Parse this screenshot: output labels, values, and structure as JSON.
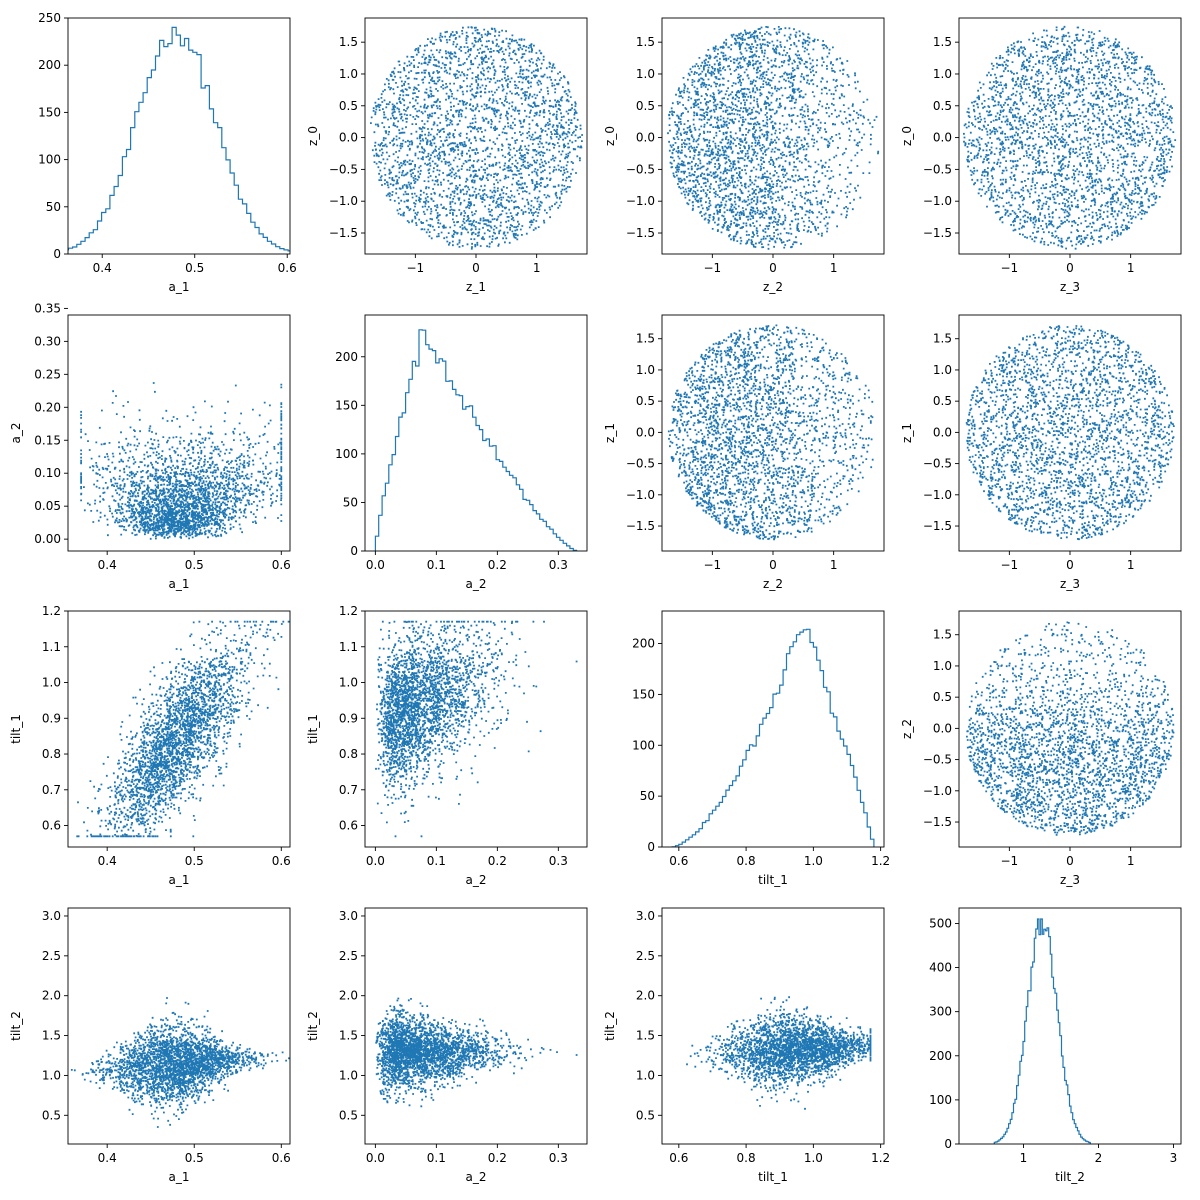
{
  "style": {
    "series_color": "#1f77b4"
  },
  "chart_data": [
    {
      "type": "histogram",
      "row": 0,
      "col": 0,
      "xlabel": "a_1",
      "ylabel": "",
      "xlim": [
        0.363,
        0.603
      ],
      "ylim": [
        0,
        250
      ],
      "xticks": [
        0.4,
        0.5,
        0.6
      ],
      "yticks": [
        0,
        50,
        100,
        150,
        200,
        250
      ],
      "dist": {
        "kind": "normal",
        "mean": 0.48,
        "sd": 0.042
      },
      "peak": 240
    },
    {
      "type": "scatter",
      "row": 0,
      "col": 1,
      "xlabel": "z_1",
      "ylabel": "z_0",
      "xlim": [
        -1.83,
        1.83
      ],
      "ylim": [
        -1.83,
        1.88
      ],
      "xticks": [
        -1,
        0,
        1
      ],
      "yticks": [
        -1.5,
        -1.0,
        -0.5,
        0.0,
        0.5,
        1.0,
        1.5
      ],
      "dist": {
        "kind": "disk",
        "r": 1.75
      }
    },
    {
      "type": "scatter",
      "row": 0,
      "col": 2,
      "xlabel": "z_2",
      "ylabel": "z_0",
      "xlim": [
        -1.83,
        1.83
      ],
      "ylim": [
        -1.83,
        1.88
      ],
      "xticks": [
        -1,
        0,
        1
      ],
      "yticks": [
        -1.5,
        -1.0,
        -0.5,
        0.0,
        0.5,
        1.0,
        1.5
      ],
      "dist": {
        "kind": "disk_skew",
        "r": 1.75,
        "skew": "left"
      }
    },
    {
      "type": "scatter",
      "row": 0,
      "col": 3,
      "xlabel": "z_3",
      "ylabel": "z_0",
      "xlim": [
        -1.83,
        1.83
      ],
      "ylim": [
        -1.83,
        1.88
      ],
      "xticks": [
        -1,
        0,
        1
      ],
      "yticks": [
        -1.5,
        -1.0,
        -0.5,
        0.0,
        0.5,
        1.0,
        1.5
      ],
      "dist": {
        "kind": "disk",
        "r": 1.75
      }
    },
    {
      "type": "scatter",
      "row": 1,
      "col": 0,
      "xlabel": "a_1",
      "ylabel": "a_2",
      "xlim": [
        0.355,
        0.61
      ],
      "ylim": [
        -0.018,
        0.34
      ],
      "xticks": [
        0.4,
        0.5,
        0.6
      ],
      "yticks": [
        0.0,
        0.05,
        0.1,
        0.15,
        0.2,
        0.25,
        0.3,
        0.35
      ],
      "dist": {
        "kind": "a1a2"
      }
    },
    {
      "type": "histogram",
      "row": 1,
      "col": 1,
      "xlabel": "a_2",
      "ylabel": "",
      "xlim": [
        -0.017,
        0.347
      ],
      "ylim": [
        0,
        243
      ],
      "xticks": [
        0.0,
        0.1,
        0.2,
        0.3
      ],
      "yticks": [
        0,
        50,
        100,
        150,
        200
      ],
      "dist": {
        "kind": "skewed",
        "mode": 0.08,
        "min": 0.0,
        "max": 0.33
      },
      "peak": 231
    },
    {
      "type": "scatter",
      "row": 1,
      "col": 2,
      "xlabel": "z_2",
      "ylabel": "z_1",
      "xlim": [
        -1.83,
        1.83
      ],
      "ylim": [
        -1.9,
        1.88
      ],
      "xticks": [
        -1,
        0,
        1
      ],
      "yticks": [
        -1.5,
        -1.0,
        -0.5,
        0.0,
        0.5,
        1.0,
        1.5
      ],
      "dist": {
        "kind": "disk_skew",
        "r": 1.72,
        "skew": "left"
      }
    },
    {
      "type": "scatter",
      "row": 1,
      "col": 3,
      "xlabel": "z_3",
      "ylabel": "z_1",
      "xlim": [
        -1.83,
        1.83
      ],
      "ylim": [
        -1.9,
        1.88
      ],
      "xticks": [
        -1,
        0,
        1
      ],
      "yticks": [
        -1.5,
        -1.0,
        -0.5,
        0.0,
        0.5,
        1.0,
        1.5
      ],
      "dist": {
        "kind": "disk",
        "r": 1.72
      }
    },
    {
      "type": "scatter",
      "row": 2,
      "col": 0,
      "xlabel": "a_1",
      "ylabel": "tilt_1",
      "xlim": [
        0.355,
        0.61
      ],
      "ylim": [
        0.54,
        1.2
      ],
      "xticks": [
        0.4,
        0.5,
        0.6
      ],
      "yticks": [
        0.6,
        0.7,
        0.8,
        0.9,
        1.0,
        1.1,
        1.2
      ],
      "dist": {
        "kind": "a1tilt1"
      }
    },
    {
      "type": "scatter",
      "row": 2,
      "col": 1,
      "xlabel": "a_2",
      "ylabel": "tilt_1",
      "xlim": [
        -0.017,
        0.347
      ],
      "ylim": [
        0.54,
        1.2
      ],
      "xticks": [
        0.0,
        0.1,
        0.2,
        0.3
      ],
      "yticks": [
        0.6,
        0.7,
        0.8,
        0.9,
        1.0,
        1.1,
        1.2
      ],
      "dist": {
        "kind": "a2tilt1"
      }
    },
    {
      "type": "histogram",
      "row": 2,
      "col": 2,
      "xlabel": "tilt_1",
      "ylabel": "",
      "xlim": [
        0.55,
        1.21
      ],
      "ylim": [
        0,
        232
      ],
      "xticks": [
        0.6,
        0.8,
        1.0,
        1.2
      ],
      "yticks": [
        0,
        50,
        100,
        150,
        200
      ],
      "dist": {
        "kind": "leftskew",
        "mode": 0.97,
        "min": 0.58,
        "max": 1.18
      },
      "peak": 221
    },
    {
      "type": "scatter",
      "row": 2,
      "col": 3,
      "xlabel": "z_3",
      "ylabel": "z_2",
      "xlim": [
        -1.83,
        1.83
      ],
      "ylim": [
        -1.9,
        1.88
      ],
      "xticks": [
        -1,
        0,
        1
      ],
      "yticks": [
        -1.5,
        -1.0,
        -0.5,
        0.0,
        0.5,
        1.0,
        1.5
      ],
      "dist": {
        "kind": "disk_skew",
        "r": 1.72,
        "skew": "down"
      }
    },
    {
      "type": "scatter",
      "row": 3,
      "col": 0,
      "xlabel": "a_1",
      "ylabel": "tilt_2",
      "xlim": [
        0.355,
        0.61
      ],
      "ylim": [
        0.14,
        3.1
      ],
      "xticks": [
        0.4,
        0.5,
        0.6
      ],
      "yticks": [
        0.5,
        1.0,
        1.5,
        2.0,
        2.5,
        3.0
      ],
      "dist": {
        "kind": "a1tilt2"
      }
    },
    {
      "type": "scatter",
      "row": 3,
      "col": 1,
      "xlabel": "a_2",
      "ylabel": "tilt_2",
      "xlim": [
        -0.017,
        0.347
      ],
      "ylim": [
        0.14,
        3.1
      ],
      "xticks": [
        0.0,
        0.1,
        0.2,
        0.3
      ],
      "yticks": [
        0.5,
        1.0,
        1.5,
        2.0,
        2.5,
        3.0
      ],
      "dist": {
        "kind": "a2tilt2"
      }
    },
    {
      "type": "scatter",
      "row": 3,
      "col": 2,
      "xlabel": "tilt_1",
      "ylabel": "tilt_2",
      "xlim": [
        0.55,
        1.21
      ],
      "ylim": [
        0.14,
        3.1
      ],
      "xticks": [
        0.6,
        0.8,
        1.0,
        1.2
      ],
      "yticks": [
        0.5,
        1.0,
        1.5,
        2.0,
        2.5,
        3.0
      ],
      "dist": {
        "kind": "tilt1tilt2"
      }
    },
    {
      "type": "histogram",
      "row": 3,
      "col": 3,
      "xlabel": "tilt_2",
      "ylabel": "",
      "xlim": [
        0.14,
        3.1
      ],
      "ylim": [
        0,
        535
      ],
      "xticks": [
        1,
        2,
        3
      ],
      "yticks": [
        0,
        100,
        200,
        300,
        400,
        500
      ],
      "dist": {
        "kind": "normal",
        "mean": 1.25,
        "sd": 0.2
      },
      "peak": 510
    }
  ]
}
